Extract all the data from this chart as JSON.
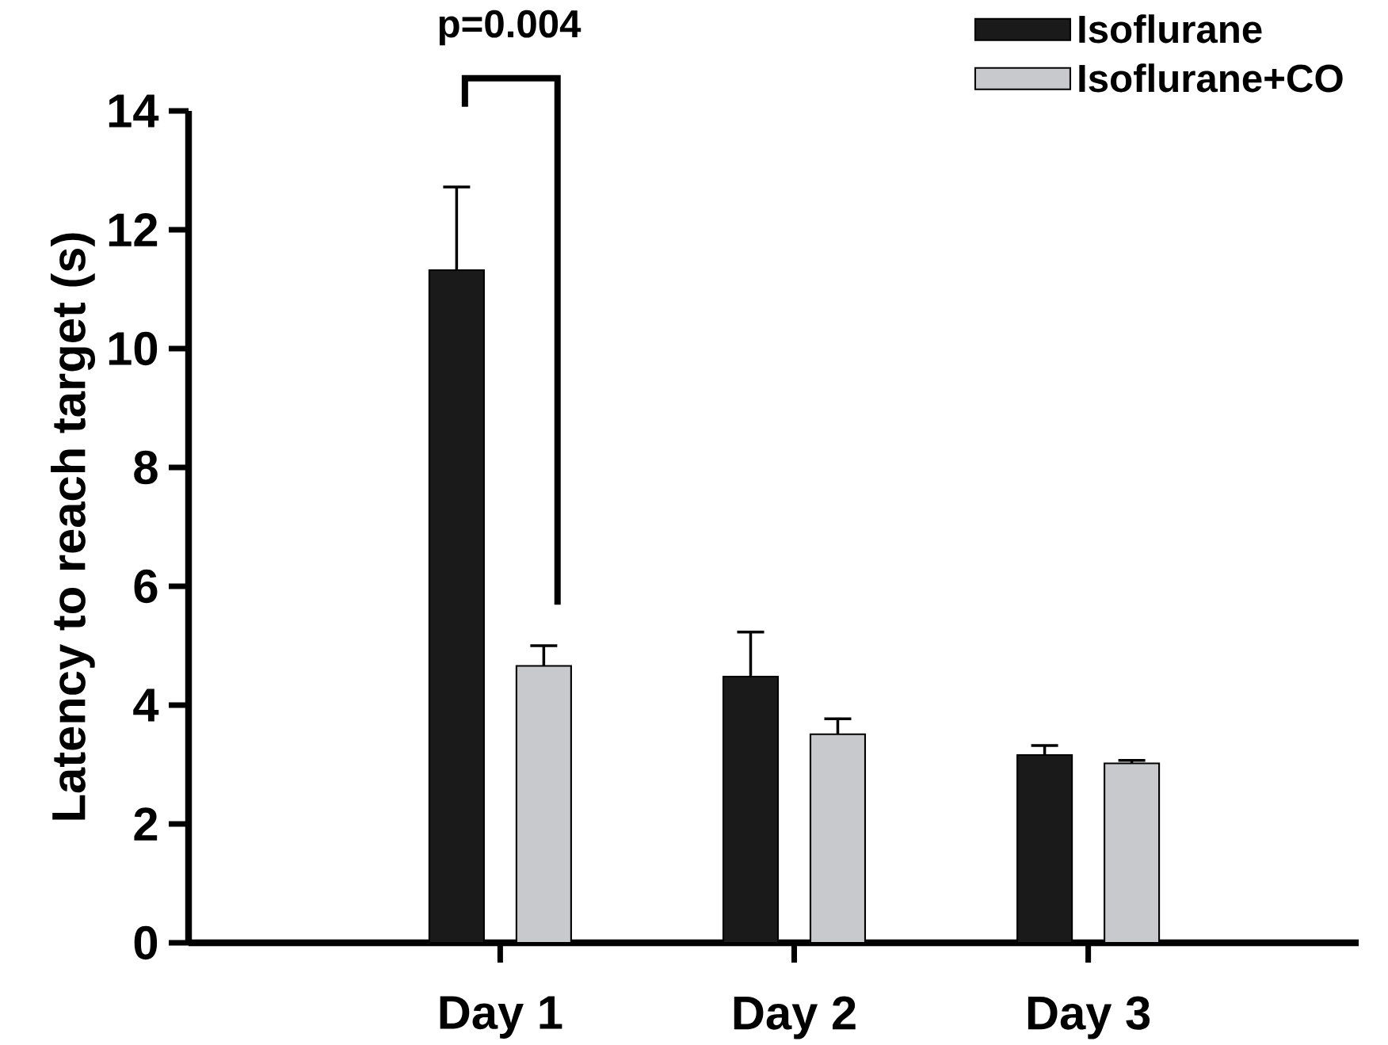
{
  "chart_data": {
    "type": "bar",
    "ylabel": "Latency to reach target (s)",
    "categories": [
      "Day 1",
      "Day 2",
      "Day 3"
    ],
    "series": [
      {
        "name": "Isoflurane",
        "color": "#1a1a1a",
        "values": [
          11.32,
          4.48,
          3.16
        ],
        "errors": [
          [
            11.32,
            12.72
          ],
          [
            4.48,
            5.23
          ],
          [
            3.16,
            3.32
          ]
        ]
      },
      {
        "name": "Isoflurane+CO",
        "color": "#c8c9cc",
        "values": [
          4.66,
          3.51,
          3.02
        ],
        "errors": [
          [
            4.66,
            5.0
          ],
          [
            3.51,
            3.77
          ],
          [
            3.02,
            3.07
          ]
        ]
      }
    ],
    "ylim": [
      0,
      14
    ],
    "yticks": [
      0,
      2,
      4,
      6,
      8,
      10,
      12,
      14
    ],
    "legend": "top right",
    "annotations": [
      "p=0.004"
    ]
  }
}
